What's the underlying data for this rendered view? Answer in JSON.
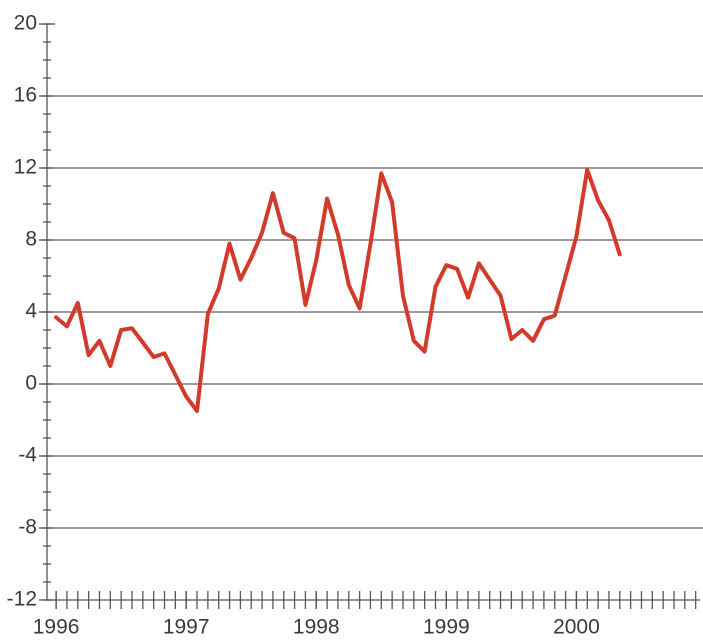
{
  "chart_data": {
    "type": "line",
    "x": [
      1996,
      1996.083,
      1996.167,
      1996.25,
      1996.333,
      1996.417,
      1996.5,
      1996.583,
      1996.667,
      1996.75,
      1996.833,
      1996.917,
      1997,
      1997.083,
      1997.167,
      1997.25,
      1997.333,
      1997.417,
      1997.5,
      1997.583,
      1997.667,
      1997.75,
      1997.833,
      1997.917,
      1998,
      1998.083,
      1998.167,
      1998.25,
      1998.333,
      1998.417,
      1998.5,
      1998.583,
      1998.667,
      1998.75,
      1998.833,
      1998.917,
      1999,
      1999.083,
      1999.167,
      1999.25,
      1999.333,
      1999.417,
      1999.5,
      1999.583,
      1999.667,
      1999.75,
      1999.833,
      1999.917,
      2000,
      2000.083,
      2000.167,
      2000.25,
      2000.333
    ],
    "series": [
      {
        "color": "#d23a2b",
        "values": [
          3.7,
          3.2,
          4.5,
          1.6,
          2.4,
          1.0,
          3.0,
          3.1,
          2.3,
          1.5,
          1.7,
          0.5,
          -0.7,
          -1.5,
          3.9,
          5.3,
          7.8,
          5.8,
          7.0,
          8.4,
          10.6,
          8.4,
          8.1,
          4.4,
          6.9,
          10.3,
          8.3,
          5.5,
          4.2,
          7.8,
          11.7,
          10.1,
          4.9,
          2.4,
          1.8,
          5.4,
          6.6,
          6.4,
          4.8,
          6.7,
          5.8,
          4.9,
          2.5,
          3.0,
          2.4,
          3.6,
          3.8,
          6.0,
          8.2,
          11.9,
          10.2,
          9.1,
          7.2
        ]
      }
    ],
    "xlim": [
      1995.93,
      2000.95
    ],
    "xticks": [
      1996,
      1997,
      1998,
      1999,
      2000
    ],
    "ylim": [
      -12,
      20
    ],
    "yticks": [
      -12,
      -8,
      -4,
      0,
      4,
      8,
      12,
      16,
      20
    ],
    "grid": true
  }
}
